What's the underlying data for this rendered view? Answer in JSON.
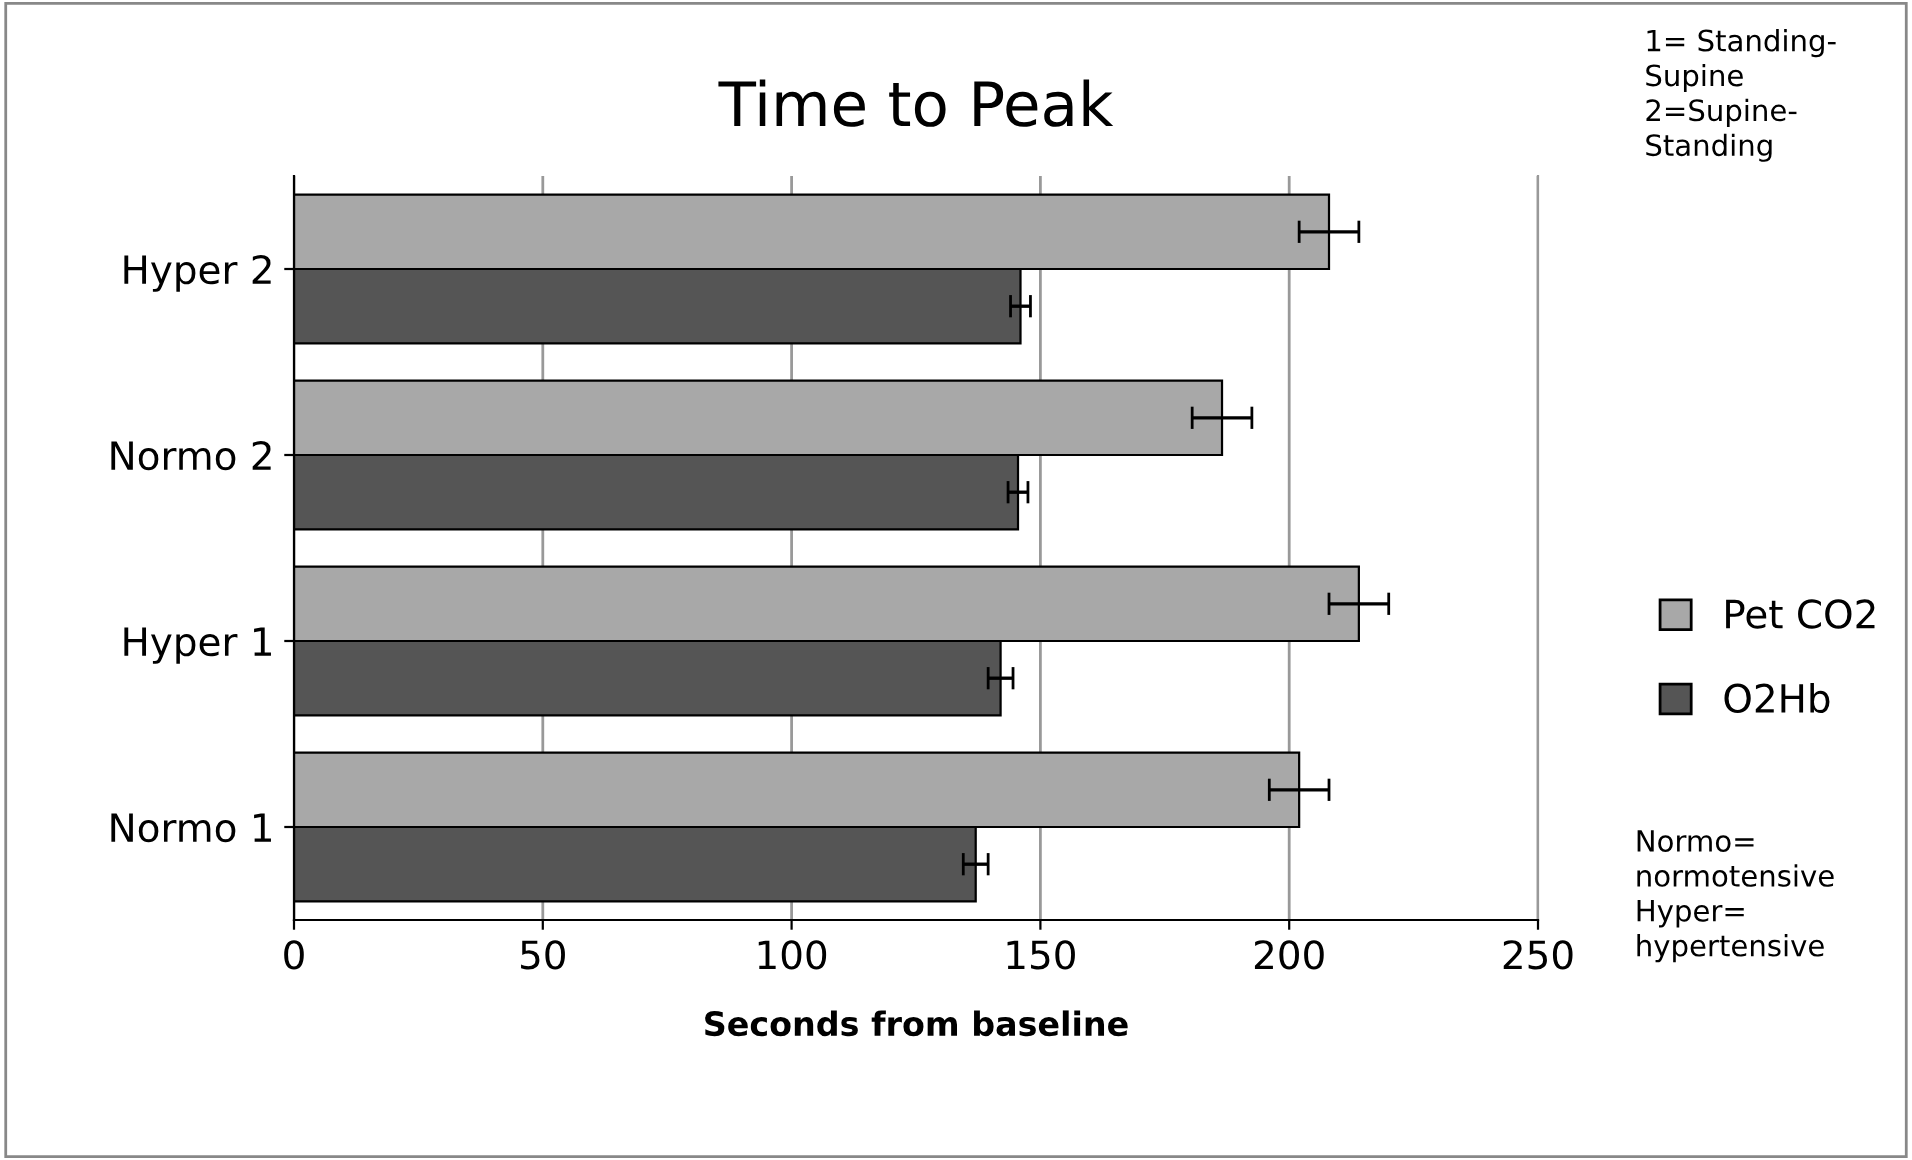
{
  "chart_data": {
    "type": "bar",
    "orientation": "horizontal",
    "title": "Time to Peak",
    "xlabel": "Seconds from baseline",
    "categories": [
      "Hyper 2",
      "Normo 2",
      "Hyper 1",
      "Normo 1"
    ],
    "series": [
      {
        "name": "Pet CO2",
        "color": "#a8a8a8",
        "values": [
          208,
          186.5,
          214,
          202
        ],
        "errors": [
          6,
          6,
          6,
          6
        ]
      },
      {
        "name": "O2Hb",
        "color": "#555555",
        "values": [
          146,
          145.5,
          142,
          137
        ],
        "errors": [
          2,
          2,
          2.5,
          2.5
        ]
      }
    ],
    "xlim": [
      0,
      250
    ],
    "xticks": [
      0,
      50,
      100,
      150,
      200,
      250
    ],
    "grid": "x",
    "legend": "right",
    "annotations": [
      "1= Standing-\nSupine\n2=Supine-\nStanding",
      "Normo=\nnormotensive\nHyper=\nhypertensive"
    ]
  }
}
